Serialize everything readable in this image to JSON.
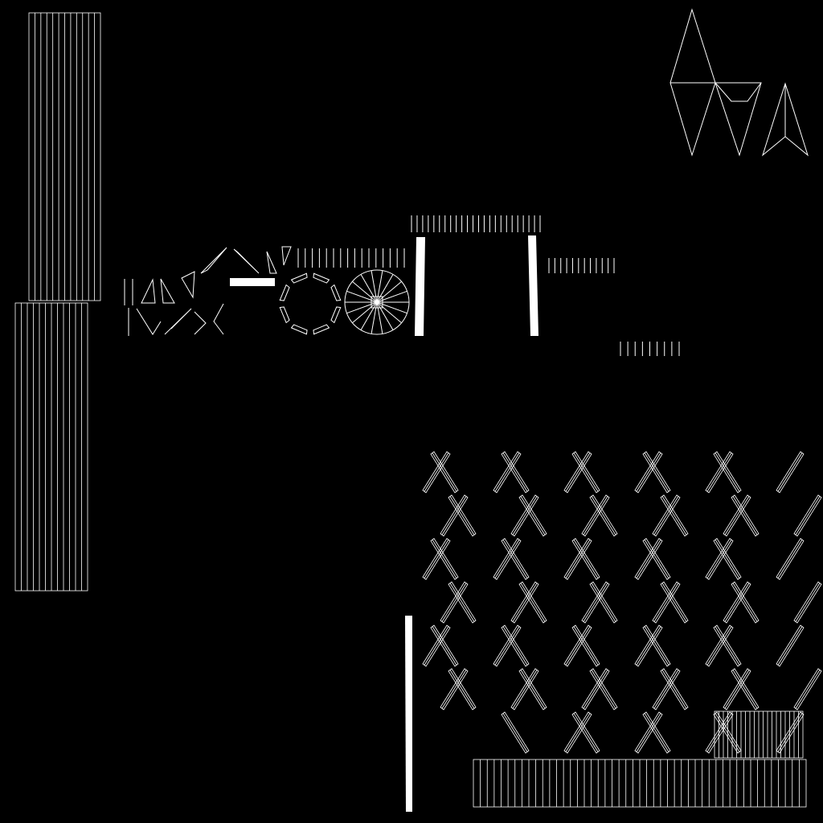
{
  "colors": {
    "background": "#000000",
    "wire": "#ffffff",
    "fill": "#ffffff"
  },
  "texture": {
    "description_visible": ""
  }
}
